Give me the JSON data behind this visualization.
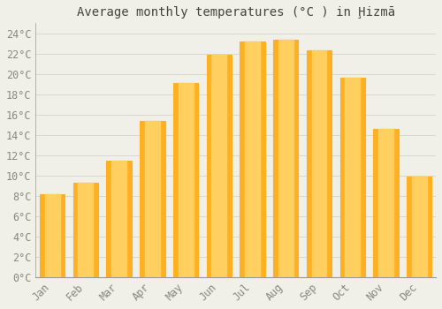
{
  "title": "Average monthly temperatures (°C ) in Ḩizmā",
  "months": [
    "Jan",
    "Feb",
    "Mar",
    "Apr",
    "May",
    "Jun",
    "Jul",
    "Aug",
    "Sep",
    "Oct",
    "Nov",
    "Dec"
  ],
  "values": [
    8.2,
    9.3,
    11.5,
    15.4,
    19.1,
    21.9,
    23.2,
    23.4,
    22.3,
    19.6,
    14.6,
    9.9
  ],
  "bar_color_light": "#FFD060",
  "bar_color_dark": "#FFB020",
  "background_color": "#F0F0E8",
  "grid_color": "#D8D8D0",
  "ylim": [
    0,
    25
  ],
  "ytick_step": 2,
  "title_fontsize": 10,
  "tick_fontsize": 8.5,
  "axis_label_color": "#888880",
  "bar_width": 0.75
}
